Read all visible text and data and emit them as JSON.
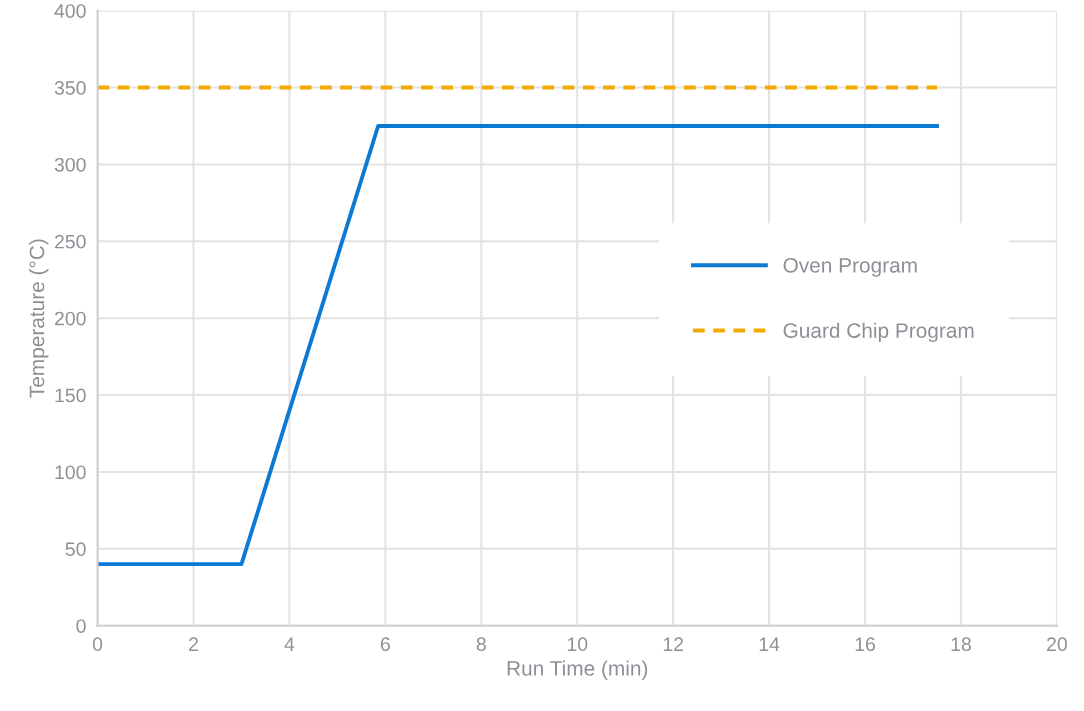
{
  "chart_data": {
    "type": "line",
    "xlabel": "Run Time (min)",
    "ylabel": "Temperature (°C)",
    "xlim": [
      0,
      20
    ],
    "xticks": [
      0,
      2,
      4,
      6,
      8,
      10,
      12,
      14,
      16,
      18,
      20
    ],
    "ylim": [
      0,
      400
    ],
    "yticks": [
      0,
      50,
      100,
      150,
      200,
      250,
      300,
      350,
      400
    ],
    "grid": true,
    "legend": "right",
    "marker": "none",
    "series": [
      {
        "name": "Oven Program",
        "color": "#0a7ad4",
        "line_style": "solid",
        "x": [
          0,
          3,
          5.85,
          17.5
        ],
        "values": [
          40,
          40,
          325,
          325
        ]
      },
      {
        "name": "Guard Chip Program",
        "color": "#f2a900",
        "line_style": "dashed",
        "x": [
          0,
          17.5
        ],
        "values": [
          350,
          350
        ]
      }
    ]
  }
}
